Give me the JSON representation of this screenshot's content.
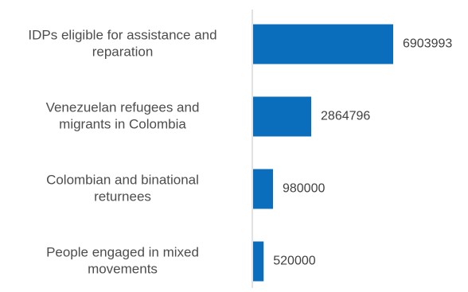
{
  "chart_data": {
    "type": "bar",
    "orientation": "horizontal",
    "categories": [
      [
        "IDPs eligible for assistance and",
        "reparation"
      ],
      [
        "Venezuelan refugees and",
        "migrants in Colombia"
      ],
      [
        "Colombian and binational",
        "returnees"
      ],
      [
        "People engaged in mixed",
        "movements"
      ]
    ],
    "values": [
      6903993,
      2864796,
      980000,
      520000
    ],
    "value_labels": [
      "6903993",
      "2864796",
      "980000",
      "520000"
    ],
    "bar_color": "#0a6ebd",
    "axis_color": "#d9d9d9",
    "grid": false,
    "legend": "none"
  }
}
